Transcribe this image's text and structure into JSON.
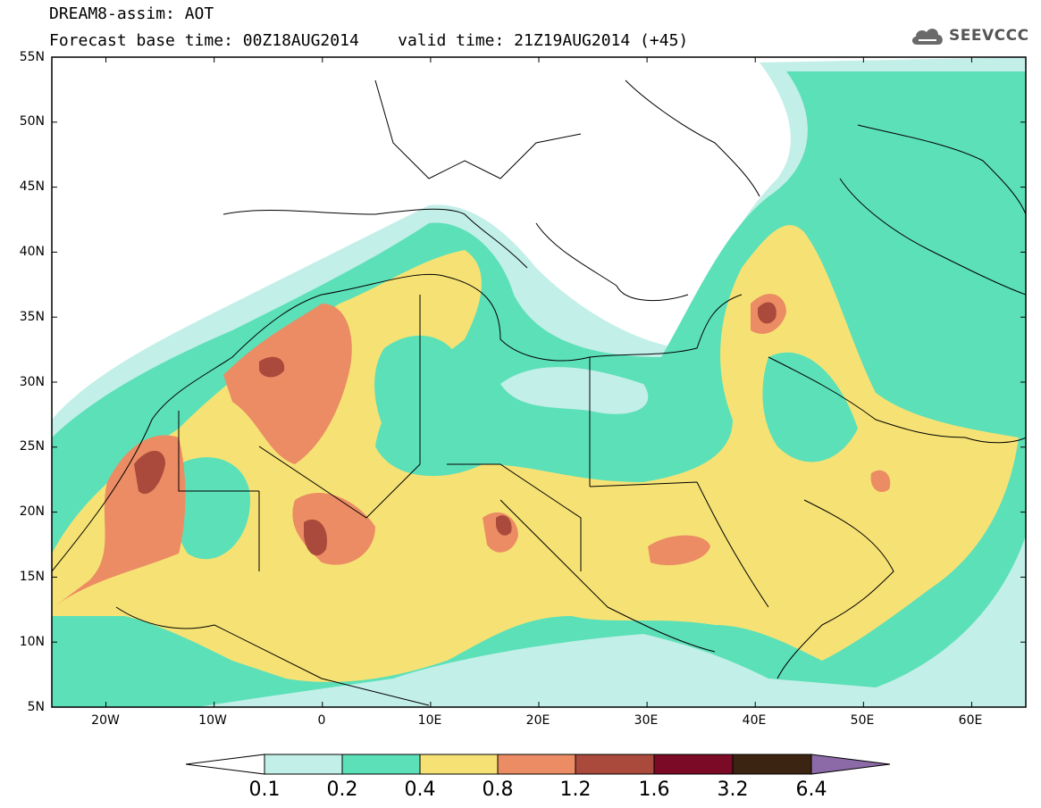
{
  "header": {
    "title_line1": "DREAM8-assim: AOT",
    "title_line2": "Forecast base time: 00Z18AUG2014    valid time: 21Z19AUG2014 (+45)"
  },
  "logo": {
    "text": "SEEVCCC",
    "icon": "cloud-icon"
  },
  "map": {
    "projection": "lat-lon",
    "lon_range": [
      -25,
      65
    ],
    "lat_range": [
      5,
      55
    ],
    "lat_labels": [
      "55N",
      "50N",
      "45N",
      "40N",
      "35N",
      "30N",
      "25N",
      "20N",
      "15N",
      "10N",
      "5N"
    ],
    "lon_labels": [
      "20W",
      "10W",
      "0",
      "10E",
      "20E",
      "30E",
      "40E",
      "50E",
      "60E"
    ]
  },
  "colorbar": {
    "ticks": [
      "0.1",
      "0.2",
      "0.4",
      "0.8",
      "1.2",
      "1.6",
      "3.2",
      "6.4"
    ],
    "colors": {
      "lt01": "#ffffff",
      "b01_02": "#c2efe8",
      "b02_04": "#5ce0b8",
      "b04_08": "#f6e274",
      "b08_12": "#eb8c64",
      "b12_16": "#a94a3c",
      "b16_32": "#7a0a26",
      "b32_64": "#3c2412",
      "gt64": "#8c6aa8"
    }
  }
}
